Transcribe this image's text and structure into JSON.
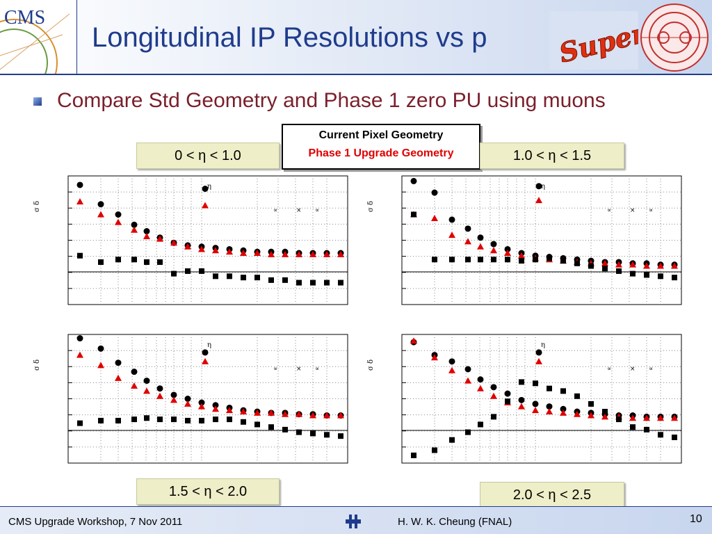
{
  "slide": {
    "title": "Longitudinal IP Resolutions vs p",
    "bullet": "Compare Std Geometry and Phase 1 zero PU using muons",
    "legend": {
      "line1": "Current Pixel Geometry",
      "line2": "Phase 1 Upgrade Geometry"
    },
    "ranges": [
      "0 < η < 1.0",
      "1.0 < η < 1.5",
      "1.5 < η < 2.0",
      "2.0 < η < 2.5"
    ],
    "super_logo_text": "Super",
    "cms_logo_text": "CMS"
  },
  "footer": {
    "left": "CMS Upgrade Workshop, 7 Nov 2011",
    "center": "H. W. K. Cheung (FNAL)",
    "page": "10"
  },
  "icons": {
    "bullet": "square-bullet-icon",
    "fnal": "fermilab-logo-icon"
  },
  "colors": {
    "title": "#1f3c8c",
    "bullet_text": "#7a1f2b",
    "phase1": "#e00000",
    "current": "#000000",
    "range_bg": "#eeeec8"
  },
  "chart_data": [
    {
      "type": "scatter",
      "panel": "0 < η < 1.0",
      "series": [
        {
          "marker": "circle",
          "color": "#000000",
          "values": [
            0.93,
            0.78,
            0.7,
            0.62,
            0.57,
            0.52,
            0.48,
            0.46,
            0.45,
            0.44,
            0.43,
            0.42,
            0.41,
            0.41,
            0.41,
            0.4,
            0.4,
            0.4,
            0.4
          ]
        },
        {
          "marker": "triangle",
          "color": "#e00000",
          "values": [
            0.8,
            0.7,
            0.64,
            0.58,
            0.53,
            0.51,
            0.48,
            0.45,
            0.43,
            0.42,
            0.41,
            0.4,
            0.4,
            0.39,
            0.39,
            0.39,
            0.39,
            0.39,
            0.39
          ]
        },
        {
          "marker": "square",
          "color": "#000000",
          "values": [
            0.38,
            0.33,
            0.35,
            0.35,
            0.33,
            0.33,
            0.24,
            0.26,
            0.26,
            0.22,
            0.22,
            0.21,
            0.21,
            0.19,
            0.19,
            0.17,
            0.17,
            0.17,
            0.17
          ]
        }
      ],
      "annotations": [
        {
          "text": "η",
          "marker": "circle",
          "circle_value": 0.9,
          "triangle_value": 0.77
        }
      ]
    },
    {
      "type": "scatter",
      "panel": "1.0 < η < 1.5",
      "series": [
        {
          "marker": "circle",
          "color": "#000000",
          "values": [
            0.96,
            0.87,
            0.66,
            0.59,
            0.52,
            0.47,
            0.43,
            0.4,
            0.38,
            0.37,
            0.36,
            0.35,
            0.34,
            0.33,
            0.33,
            0.32,
            0.32,
            0.31,
            0.31
          ]
        },
        {
          "marker": "triangle",
          "color": "#e00000",
          "values": [
            0.7,
            0.67,
            0.54,
            0.49,
            0.45,
            0.42,
            0.4,
            0.38,
            0.36,
            0.35,
            0.34,
            0.33,
            0.32,
            0.32,
            0.31,
            0.31,
            0.3,
            0.3,
            0.3
          ]
        },
        {
          "marker": "square",
          "color": "#000000",
          "values": [
            0.7,
            0.35,
            0.35,
            0.35,
            0.35,
            0.35,
            0.35,
            0.34,
            0.35,
            0.36,
            0.34,
            0.32,
            0.3,
            0.28,
            0.26,
            0.24,
            0.23,
            0.22,
            0.21
          ]
        }
      ],
      "annotations": [
        {
          "text": "η",
          "marker": "circle",
          "circle_value": 0.92,
          "triangle_value": 0.81
        }
      ]
    },
    {
      "type": "scatter",
      "panel": "1.5 < η < 2.0",
      "series": [
        {
          "marker": "circle",
          "color": "#000000",
          "values": [
            0.97,
            0.89,
            0.78,
            0.71,
            0.64,
            0.58,
            0.53,
            0.5,
            0.47,
            0.45,
            0.43,
            0.41,
            0.4,
            0.39,
            0.39,
            0.38,
            0.38,
            0.37,
            0.37
          ]
        },
        {
          "marker": "triangle",
          "color": "#e00000",
          "values": [
            0.84,
            0.76,
            0.66,
            0.6,
            0.56,
            0.52,
            0.49,
            0.46,
            0.44,
            0.42,
            0.41,
            0.4,
            0.39,
            0.39,
            0.38,
            0.38,
            0.37,
            0.37,
            0.37
          ]
        },
        {
          "marker": "square",
          "color": "#000000",
          "values": [
            0.31,
            0.33,
            0.33,
            0.34,
            0.35,
            0.34,
            0.34,
            0.33,
            0.33,
            0.34,
            0.34,
            0.32,
            0.3,
            0.28,
            0.26,
            0.24,
            0.23,
            0.22,
            0.21
          ]
        }
      ],
      "annotations": [
        {
          "text": "η",
          "marker": "circle",
          "circle_value": 0.86,
          "triangle_value": 0.79
        }
      ]
    },
    {
      "type": "scatter",
      "panel": "2.0 < η < 2.5",
      "series": [
        {
          "marker": "circle",
          "color": "#000000",
          "values": [
            0.94,
            0.84,
            0.79,
            0.73,
            0.65,
            0.59,
            0.54,
            0.49,
            0.46,
            0.44,
            0.42,
            0.4,
            0.39,
            0.38,
            0.37,
            0.37,
            0.36,
            0.36,
            0.36
          ]
        },
        {
          "marker": "triangle",
          "color": "#e00000",
          "values": [
            0.95,
            0.82,
            0.72,
            0.64,
            0.58,
            0.52,
            0.47,
            0.44,
            0.41,
            0.4,
            0.39,
            0.38,
            0.37,
            0.36,
            0.36,
            0.35,
            0.35,
            0.35,
            0.35
          ]
        },
        {
          "marker": "square",
          "color": "#000000",
          "values": [
            0.06,
            0.1,
            0.18,
            0.24,
            0.3,
            0.36,
            0.48,
            0.63,
            0.62,
            0.58,
            0.56,
            0.52,
            0.46,
            0.4,
            0.34,
            0.28,
            0.26,
            0.22,
            0.2
          ]
        }
      ],
      "annotations": [
        {
          "text": "η",
          "marker": "circle",
          "circle_value": 0.86,
          "triangle_value": 0.79
        }
      ]
    }
  ]
}
